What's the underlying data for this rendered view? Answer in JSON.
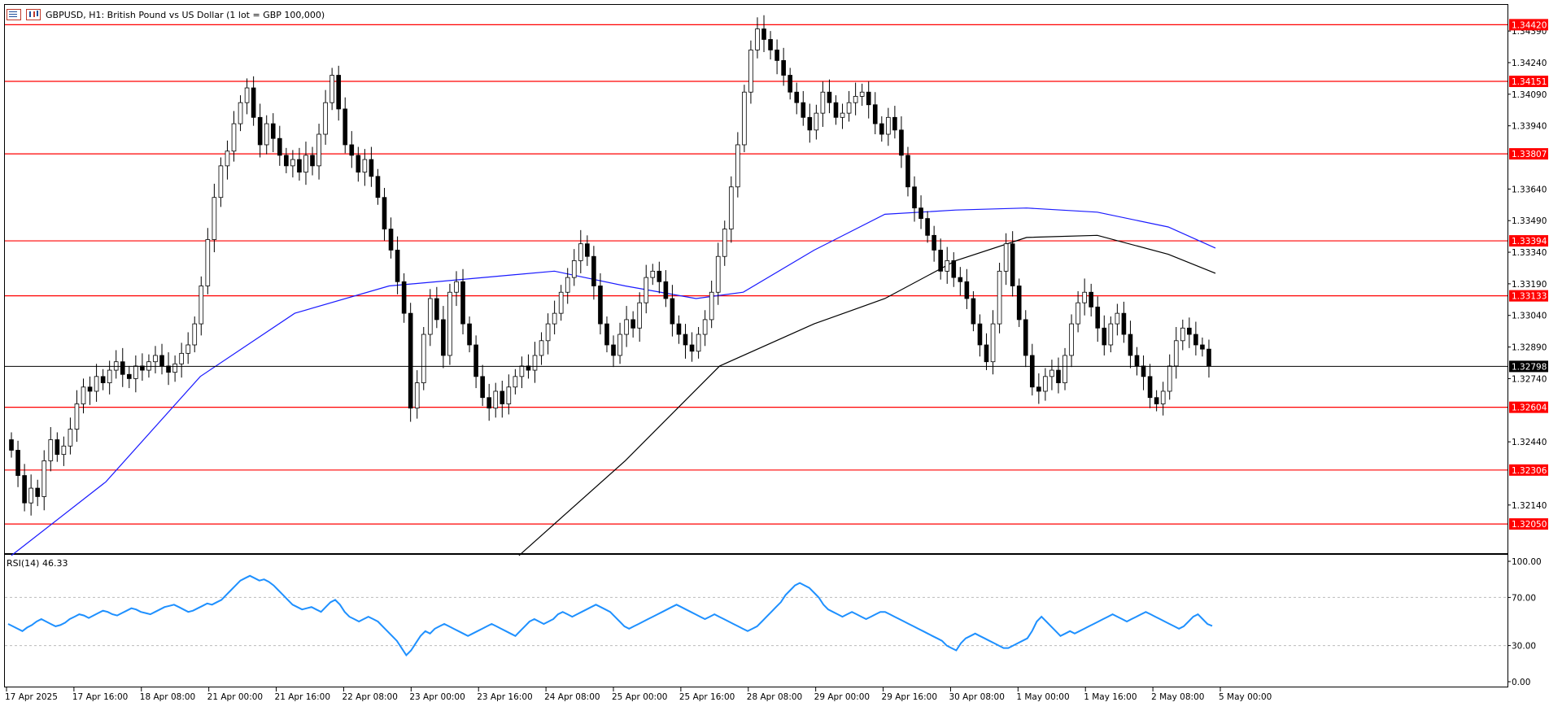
{
  "header": {
    "title": "GBPUSD, H1:  British Pound vs US Dollar (1 lot = GBP 100,000)"
  },
  "icons": [
    "chart-list-icon",
    "chart-toggle-icon"
  ],
  "colors": {
    "level_line": "#ff0000",
    "level_tag_bg": "#ff0000",
    "current_tag_bg": "#000000",
    "ma_fast": "#1a1aff",
    "ma_slow": "#000000",
    "rsi_line": "#1e90ff",
    "bull_candle": "#ffffff",
    "bear_candle": "#000000"
  },
  "rsi": {
    "label": "RSI(14) 46.33",
    "levels": [
      "100.00",
      "70.00",
      "30.00",
      "0.00"
    ],
    "values": [
      48,
      46,
      44,
      42,
      45,
      47,
      50,
      52,
      50,
      48,
      46,
      47,
      49,
      52,
      54,
      56,
      55,
      53,
      55,
      57,
      59,
      58,
      56,
      55,
      57,
      59,
      61,
      60,
      58,
      57,
      56,
      58,
      60,
      62,
      63,
      64,
      62,
      60,
      58,
      59,
      61,
      63,
      65,
      64,
      66,
      68,
      72,
      76,
      80,
      84,
      86,
      88,
      86,
      84,
      85,
      83,
      80,
      76,
      72,
      68,
      64,
      62,
      60,
      61,
      62,
      60,
      58,
      62,
      66,
      68,
      64,
      58,
      54,
      52,
      50,
      52,
      54,
      52,
      50,
      46,
      42,
      38,
      34,
      28,
      22,
      26,
      32,
      38,
      42,
      40,
      44,
      46,
      48,
      46,
      44,
      42,
      40,
      38,
      40,
      42,
      44,
      46,
      48,
      46,
      44,
      42,
      40,
      38,
      42,
      46,
      50,
      52,
      50,
      48,
      50,
      52,
      56,
      58,
      56,
      54,
      56,
      58,
      60,
      62,
      64,
      62,
      60,
      58,
      54,
      50,
      46,
      44,
      46,
      48,
      50,
      52,
      54,
      56,
      58,
      60,
      62,
      64,
      62,
      60,
      58,
      56,
      54,
      52,
      54,
      56,
      54,
      52,
      50,
      48,
      46,
      44,
      42,
      44,
      46,
      50,
      54,
      58,
      62,
      66,
      72,
      76,
      80,
      82,
      80,
      78,
      74,
      70,
      64,
      60,
      58,
      56,
      54,
      56,
      58,
      56,
      54,
      52,
      54,
      56,
      58,
      58,
      56,
      54,
      52,
      50,
      48,
      46,
      44,
      42,
      40,
      38,
      36,
      34,
      30,
      28,
      26,
      32,
      36,
      38,
      40,
      38,
      36,
      34,
      32,
      30,
      28,
      28,
      30,
      32,
      34,
      36,
      42,
      50,
      54,
      50,
      46,
      42,
      38,
      40,
      42,
      40,
      42,
      44,
      46,
      48,
      50,
      52,
      54,
      56,
      54,
      52,
      50,
      52,
      54,
      56,
      58,
      56,
      54,
      52,
      50,
      48,
      46,
      44,
      46,
      50,
      54,
      56,
      52,
      48,
      46.33
    ],
    "ylim": [
      0,
      100
    ]
  },
  "chart_data": {
    "type": "candlestick",
    "title": "GBPUSD, H1:  British Pound vs US Dollar (1 lot = GBP 100,000)",
    "ylim": [
      1.3195,
      1.3446
    ],
    "y_ticks": [
      "1.34390",
      "1.34240",
      "1.34090",
      "1.33940",
      "1.33640",
      "1.33490",
      "1.33340",
      "1.33190",
      "1.33040",
      "1.32890",
      "1.32740",
      "1.32440",
      "1.32140"
    ],
    "x_ticks": [
      "17 Apr 2025",
      "17 Apr 16:00",
      "18 Apr 08:00",
      "21 Apr 00:00",
      "21 Apr 16:00",
      "22 Apr 08:00",
      "23 Apr 00:00",
      "23 Apr 16:00",
      "24 Apr 08:00",
      "25 Apr 00:00",
      "25 Apr 16:00",
      "28 Apr 08:00",
      "29 Apr 00:00",
      "29 Apr 16:00",
      "30 Apr 08:00",
      "1 May 00:00",
      "1 May 16:00",
      "2 May 08:00",
      "5 May 00:00"
    ],
    "horizontal_levels": [
      "1.34420",
      "1.34151",
      "1.33807",
      "1.33394",
      "1.33133",
      "1.32604",
      "1.32306",
      "1.32050"
    ],
    "current_price": "1.32798",
    "close_path": [
      1.324,
      1.3228,
      1.3215,
      1.3222,
      1.3218,
      1.3235,
      1.3245,
      1.3238,
      1.3242,
      1.325,
      1.3262,
      1.327,
      1.3268,
      1.3275,
      1.3272,
      1.3278,
      1.3282,
      1.3276,
      1.3274,
      1.328,
      1.3278,
      1.3282,
      1.3285,
      1.328,
      1.3277,
      1.3281,
      1.3286,
      1.329,
      1.33,
      1.3318,
      1.334,
      1.336,
      1.3375,
      1.3382,
      1.3395,
      1.3405,
      1.3412,
      1.3398,
      1.3385,
      1.3395,
      1.3388,
      1.338,
      1.3375,
      1.3378,
      1.3372,
      1.338,
      1.3375,
      1.339,
      1.3405,
      1.3418,
      1.3402,
      1.3385,
      1.338,
      1.3372,
      1.3378,
      1.337,
      1.336,
      1.3345,
      1.3335,
      1.332,
      1.3305,
      1.326,
      1.3272,
      1.3295,
      1.3312,
      1.3302,
      1.3285,
      1.3315,
      1.332,
      1.33,
      1.329,
      1.3275,
      1.3265,
      1.326,
      1.3268,
      1.3262,
      1.327,
      1.3275,
      1.328,
      1.3278,
      1.3285,
      1.3292,
      1.33,
      1.3305,
      1.3315,
      1.3322,
      1.333,
      1.3338,
      1.3332,
      1.3318,
      1.33,
      1.329,
      1.3285,
      1.3295,
      1.3302,
      1.3298,
      1.331,
      1.3322,
      1.3325,
      1.332,
      1.3312,
      1.33,
      1.3295,
      1.329,
      1.3287,
      1.3295,
      1.3302,
      1.3315,
      1.3332,
      1.3345,
      1.3365,
      1.3385,
      1.341,
      1.343,
      1.344,
      1.3435,
      1.343,
      1.3425,
      1.3418,
      1.341,
      1.3405,
      1.3398,
      1.3392,
      1.34,
      1.341,
      1.3405,
      1.3398,
      1.34,
      1.3405,
      1.3408,
      1.341,
      1.3404,
      1.3395,
      1.339,
      1.3398,
      1.3392,
      1.338,
      1.3365,
      1.3355,
      1.335,
      1.3342,
      1.3335,
      1.3325,
      1.333,
      1.3322,
      1.332,
      1.3312,
      1.33,
      1.329,
      1.3282,
      1.33,
      1.3325,
      1.3338,
      1.3318,
      1.3302,
      1.3285,
      1.327,
      1.3268,
      1.3275,
      1.3278,
      1.3272,
      1.3285,
      1.33,
      1.331,
      1.3315,
      1.3308,
      1.3298,
      1.329,
      1.33,
      1.3305,
      1.3295,
      1.3285,
      1.328,
      1.3275,
      1.3265,
      1.3262,
      1.3268,
      1.328,
      1.3292,
      1.3298,
      1.3295,
      1.329,
      1.3288,
      1.328
    ]
  },
  "ma": {
    "fast": [
      [
        0,
        1.319
      ],
      [
        40,
        1.3225
      ],
      [
        80,
        1.3275
      ],
      [
        120,
        1.3305
      ],
      [
        160,
        1.3318
      ],
      [
        200,
        1.3322
      ],
      [
        230,
        1.3325
      ],
      [
        260,
        1.3318
      ],
      [
        290,
        1.3312
      ],
      [
        310,
        1.3315
      ],
      [
        340,
        1.3335
      ],
      [
        370,
        1.3352
      ],
      [
        400,
        1.3354
      ],
      [
        430,
        1.3355
      ],
      [
        460,
        1.3353
      ],
      [
        490,
        1.3346
      ],
      [
        510,
        1.3336
      ]
    ],
    "slow": [
      [
        215,
        1.319
      ],
      [
        260,
        1.3235
      ],
      [
        300,
        1.328
      ],
      [
        340,
        1.33
      ],
      [
        370,
        1.3312
      ],
      [
        400,
        1.333
      ],
      [
        430,
        1.3341
      ],
      [
        460,
        1.3342
      ],
      [
        490,
        1.3333
      ],
      [
        510,
        1.3324
      ]
    ]
  }
}
